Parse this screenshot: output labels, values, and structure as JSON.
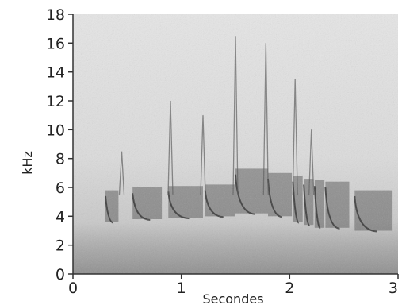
{
  "chart_data": {
    "type": "heatmap",
    "title": "",
    "xlabel": "Secondes",
    "ylabel": "kHz",
    "xlim": [
      0,
      3
    ],
    "ylim": [
      0,
      18
    ],
    "x_ticks": [
      0,
      1,
      2,
      3
    ],
    "y_ticks": [
      0,
      2,
      4,
      6,
      8,
      10,
      12,
      14,
      16,
      18
    ],
    "x_tick_labels": [
      "0",
      "1",
      "2",
      "3"
    ],
    "y_tick_labels": [
      "0",
      "2",
      "4",
      "6",
      "8",
      "10",
      "12",
      "14",
      "16",
      "18"
    ],
    "colormap": "greyscale (darker = higher energy)",
    "notes": "Spectrogram of a bird song: low-frequency background noise below ~2 kHz, a series of notes between ~0.3 and 3 s in the 3–7 kHz band with upward frequency sweeps reaching ~16–17 kHz near 1.5–1.8 s.",
    "notes_dense": [
      {
        "t_start": 0.3,
        "t_end": 0.42,
        "f_low": 3.6,
        "f_high": 5.8
      },
      {
        "t_start": 0.55,
        "t_end": 0.82,
        "f_low": 3.8,
        "f_high": 6.0
      },
      {
        "t_start": 0.88,
        "t_end": 1.2,
        "f_low": 3.9,
        "f_high": 6.1
      },
      {
        "t_start": 1.22,
        "t_end": 1.5,
        "f_low": 4.0,
        "f_high": 6.2
      },
      {
        "t_start": 1.5,
        "t_end": 1.8,
        "f_low": 4.2,
        "f_high": 7.3
      },
      {
        "t_start": 1.8,
        "t_end": 2.02,
        "f_low": 4.0,
        "f_high": 7.0
      },
      {
        "t_start": 2.03,
        "t_end": 2.12,
        "f_low": 3.6,
        "f_high": 6.8
      },
      {
        "t_start": 2.13,
        "t_end": 2.22,
        "f_low": 3.4,
        "f_high": 6.6
      },
      {
        "t_start": 2.23,
        "t_end": 2.32,
        "f_low": 3.2,
        "f_high": 6.5
      },
      {
        "t_start": 2.33,
        "t_end": 2.55,
        "f_low": 3.2,
        "f_high": 6.4
      },
      {
        "t_start": 2.6,
        "t_end": 2.95,
        "f_low": 3.0,
        "f_high": 5.8
      }
    ],
    "sweeps": [
      {
        "t": 0.45,
        "f_top": 8.5
      },
      {
        "t": 0.9,
        "f_top": 12.0
      },
      {
        "t": 1.2,
        "f_top": 11.0
      },
      {
        "t": 1.5,
        "f_top": 16.5
      },
      {
        "t": 1.78,
        "f_top": 16.0
      },
      {
        "t": 2.05,
        "f_top": 13.5
      },
      {
        "t": 2.2,
        "f_top": 10.0
      }
    ]
  }
}
